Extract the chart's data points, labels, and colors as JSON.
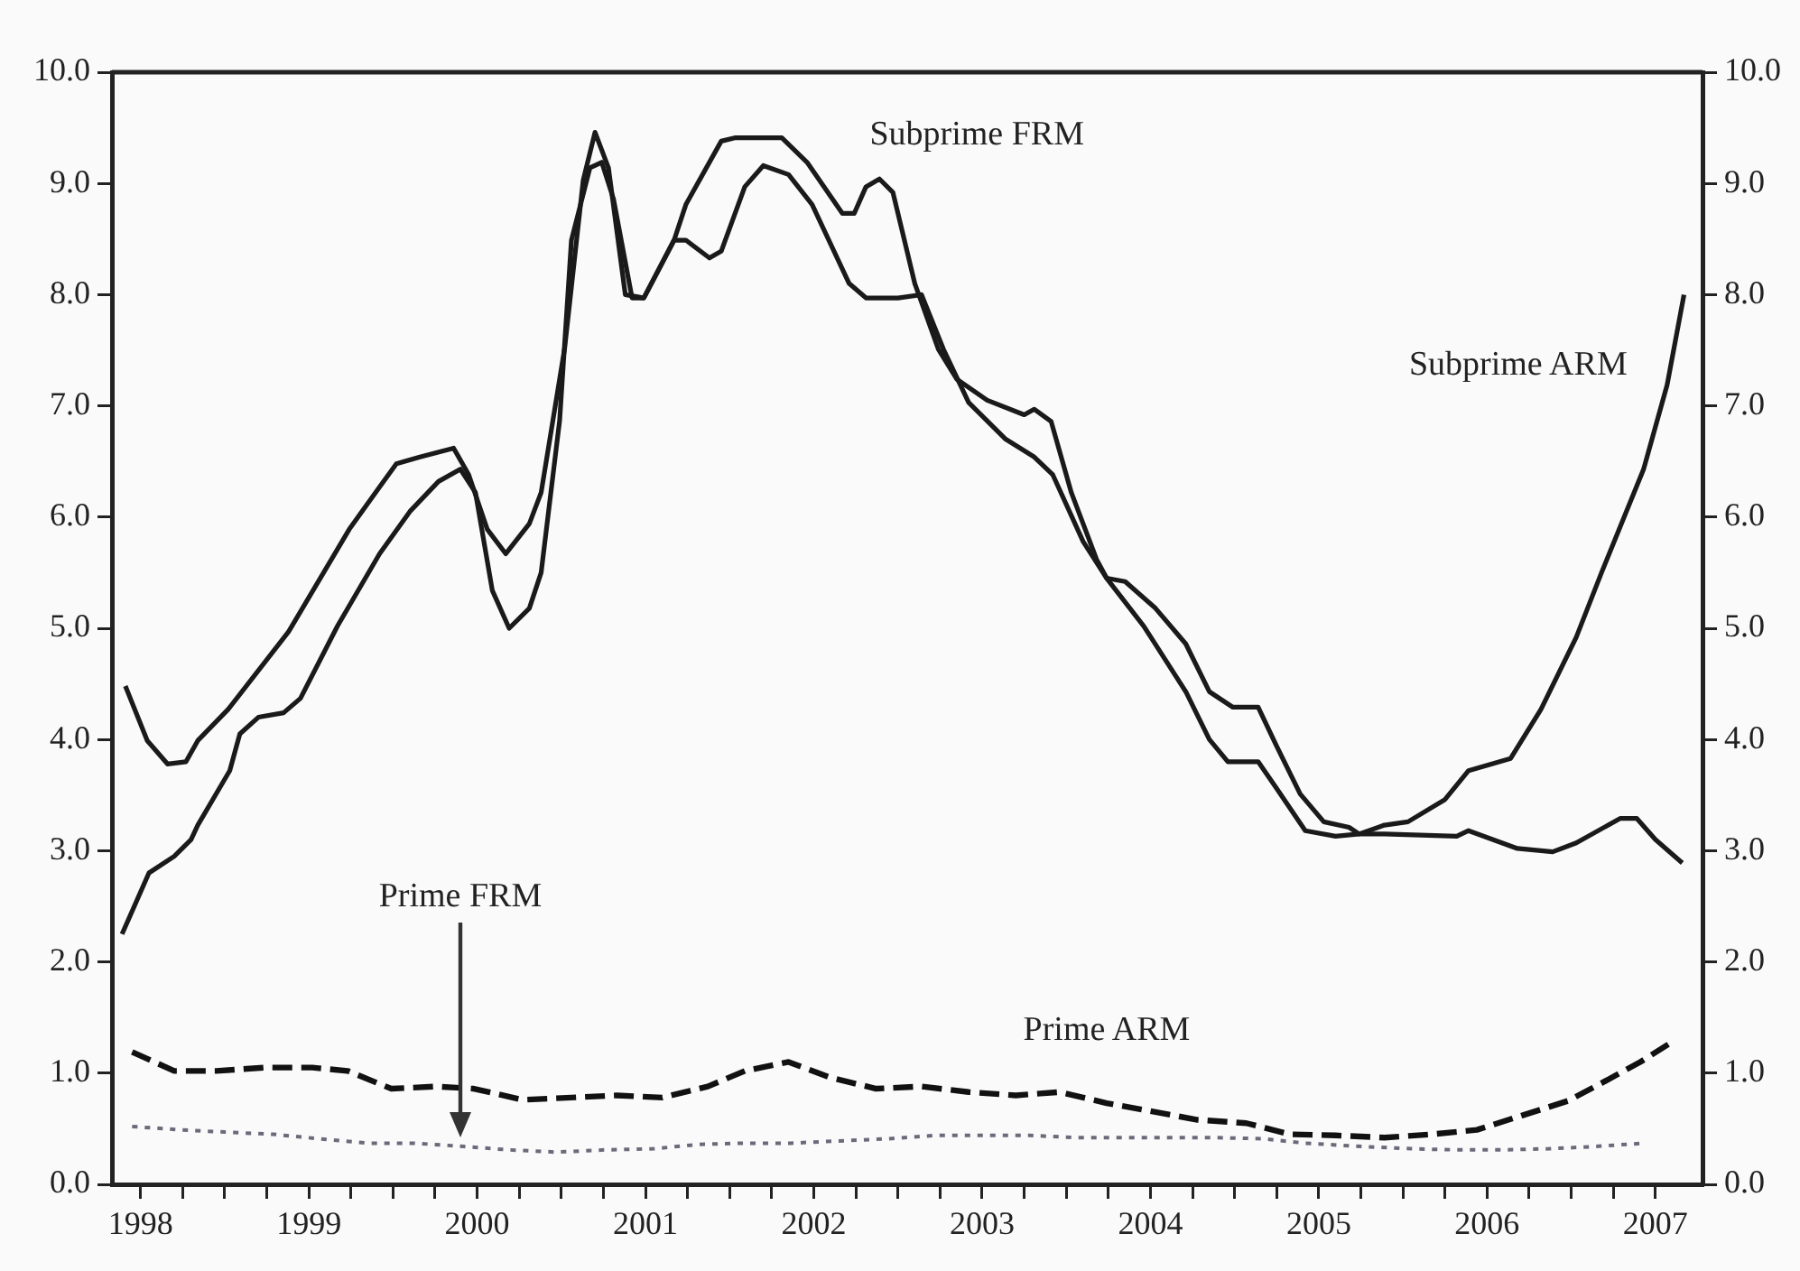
{
  "chart_data": {
    "type": "line",
    "xlim": [
      1997.83,
      2007.28
    ],
    "xticks": [
      1998,
      {
        "value": 1998.25,
        "label": null
      },
      {
        "value": 1998.5,
        "label": null
      },
      {
        "value": 1998.75,
        "label": null
      },
      1999,
      {
        "value": 1999.25,
        "label": null
      },
      {
        "value": 1999.5,
        "label": null
      },
      {
        "value": 1999.75,
        "label": null
      },
      2000,
      {
        "value": 2000.25,
        "label": null
      },
      {
        "value": 2000.5,
        "label": null
      },
      {
        "value": 2000.75,
        "label": null
      },
      2001,
      {
        "value": 2001.25,
        "label": null
      },
      {
        "value": 2001.5,
        "label": null
      },
      {
        "value": 2001.75,
        "label": null
      },
      2002,
      {
        "value": 2002.25,
        "label": null
      },
      {
        "value": 2002.5,
        "label": null
      },
      {
        "value": 2002.75,
        "label": null
      },
      2003,
      {
        "value": 2003.25,
        "label": null
      },
      {
        "value": 2003.5,
        "label": null
      },
      {
        "value": 2003.75,
        "label": null
      },
      2004,
      {
        "value": 2004.25,
        "label": null
      },
      {
        "value": 2004.5,
        "label": null
      },
      {
        "value": 2004.75,
        "label": null
      },
      2005,
      {
        "value": 2005.25,
        "label": null
      },
      {
        "value": 2005.5,
        "label": null
      },
      {
        "value": 2005.75,
        "label": null
      },
      2006,
      {
        "value": 2006.25,
        "label": null
      },
      {
        "value": 2006.5,
        "label": null
      },
      {
        "value": 2006.75,
        "label": null
      },
      2007
    ],
    "ylim": [
      0,
      10
    ],
    "yticks": [
      {
        "value": 0,
        "label": "0.0"
      },
      {
        "value": 1,
        "label": "1.0"
      },
      {
        "value": 2,
        "label": "2.0"
      },
      {
        "value": 3,
        "label": "3.0"
      },
      {
        "value": 4,
        "label": "4.0"
      },
      {
        "value": 5,
        "label": "5.0"
      },
      {
        "value": 6,
        "label": "6.0"
      },
      {
        "value": 7,
        "label": "7.0"
      },
      {
        "value": 8,
        "label": "8.0"
      },
      {
        "value": 9,
        "label": "9.0"
      },
      {
        "value": 10,
        "label": "10.0"
      }
    ],
    "y2lim": [
      0,
      10
    ],
    "y2ticks": [
      {
        "value": 0,
        "label": "0.0"
      },
      {
        "value": 1,
        "label": "1.0"
      },
      {
        "value": 2,
        "label": "2.0"
      },
      {
        "value": 3,
        "label": "3.0"
      },
      {
        "value": 4,
        "label": "4.0"
      },
      {
        "value": 5,
        "label": "5.0"
      },
      {
        "value": 6,
        "label": "6.0"
      },
      {
        "value": 7,
        "label": "7.0"
      },
      {
        "value": 8,
        "label": "8.0"
      },
      {
        "value": 9,
        "label": "9.0"
      },
      {
        "value": 10,
        "label": "10.0"
      }
    ],
    "series": [
      {
        "color": "#1a1a1a",
        "line_style": "solid",
        "x": [
          1997.91,
          1998.04,
          1998.16,
          1998.27,
          1998.34,
          1998.52,
          1998.88,
          1999.24,
          1999.42,
          1999.52,
          1999.66,
          1999.86,
          1999.95,
          2000.06,
          2000.17,
          2000.31,
          2000.38,
          2000.45,
          2000.52,
          2000.63,
          2000.7,
          2000.78,
          2000.88,
          2000.99,
          2001.17,
          2001.24,
          2001.45,
          2001.53,
          2001.81,
          2001.96,
          2002.17,
          2002.24,
          2002.31,
          2002.39,
          2002.47,
          2002.6,
          2002.74,
          2002.85,
          2003.03,
          2003.25,
          2003.31,
          2003.41,
          2003.53,
          2003.68,
          2003.74,
          2003.85,
          2004.03,
          2004.21,
          2004.35,
          2004.49,
          2004.64,
          2004.75,
          2004.89,
          2005.03,
          2005.18,
          2005.24,
          2005.39,
          2005.82,
          2005.89,
          2006.18,
          2006.39,
          2006.53,
          2006.79,
          2006.89,
          2007.0,
          2007.16
        ],
        "values": [
          4.48,
          3.99,
          3.78,
          3.8,
          3.99,
          4.27,
          4.97,
          5.89,
          6.27,
          6.48,
          6.54,
          6.62,
          6.38,
          5.89,
          5.67,
          5.94,
          6.22,
          6.87,
          7.52,
          9.03,
          9.46,
          9.14,
          8.0,
          7.97,
          8.49,
          8.81,
          9.38,
          9.41,
          9.41,
          9.19,
          8.73,
          8.73,
          8.97,
          9.04,
          8.92,
          8.1,
          7.51,
          7.24,
          7.05,
          6.92,
          6.97,
          6.86,
          6.22,
          5.62,
          5.45,
          5.42,
          5.18,
          4.86,
          4.43,
          4.29,
          4.29,
          3.94,
          3.51,
          3.26,
          3.21,
          3.15,
          3.15,
          3.13,
          3.18,
          3.02,
          2.99,
          3.07,
          3.29,
          3.29,
          3.1,
          2.89
        ]
      },
      {
        "color": "#1a1a1a",
        "line_style": "solid",
        "x": [
          1997.89,
          1998.05,
          1998.2,
          1998.3,
          1998.34,
          1998.53,
          1998.59,
          1998.7,
          1998.85,
          1998.95,
          1999.17,
          1999.42,
          1999.6,
          1999.77,
          1999.9,
          1999.99,
          2000.09,
          2000.19,
          2000.31,
          2000.38,
          2000.49,
          2000.56,
          2000.67,
          2000.74,
          2000.81,
          2000.92,
          2000.99,
          2001.17,
          2001.24,
          2001.38,
          2001.45,
          2001.59,
          2001.7,
          2001.85,
          2001.99,
          2002.21,
          2002.31,
          2002.5,
          2002.64,
          2002.77,
          2002.92,
          2003.14,
          2003.31,
          2003.42,
          2003.6,
          2003.74,
          2003.96,
          2004.21,
          2004.35,
          2004.46,
          2004.64,
          2004.75,
          2004.92,
          2005.1,
          2005.24,
          2005.39,
          2005.53,
          2005.75,
          2005.89,
          2006.14,
          2006.32,
          2006.53,
          2006.68,
          2006.93,
          2007.07,
          2007.17
        ],
        "values": [
          2.25,
          2.8,
          2.95,
          3.1,
          3.23,
          3.72,
          4.05,
          4.2,
          4.24,
          4.37,
          5.02,
          5.67,
          6.05,
          6.32,
          6.43,
          6.22,
          5.34,
          5.0,
          5.18,
          5.5,
          6.87,
          8.49,
          9.14,
          9.19,
          8.86,
          7.97,
          7.97,
          8.49,
          8.49,
          8.33,
          8.39,
          8.97,
          9.16,
          9.08,
          8.81,
          8.1,
          7.97,
          7.97,
          8.0,
          7.51,
          7.03,
          6.7,
          6.54,
          6.38,
          5.78,
          5.45,
          5.02,
          4.43,
          4.0,
          3.8,
          3.8,
          3.56,
          3.18,
          3.13,
          3.15,
          3.23,
          3.26,
          3.46,
          3.72,
          3.83,
          4.27,
          4.92,
          5.5,
          6.43,
          7.19,
          8.0
        ]
      },
      {
        "color": "#111111",
        "line_style": "dashed",
        "x": [
          1997.95,
          1998.2,
          1998.45,
          1998.74,
          1999.02,
          1999.23,
          1999.49,
          1999.76,
          1999.98,
          2000.27,
          2000.56,
          2000.83,
          2001.1,
          2001.37,
          2001.59,
          2001.85,
          2002.1,
          2002.37,
          2002.64,
          2002.92,
          2003.2,
          2003.46,
          2003.74,
          2004.03,
          2004.28,
          2004.57,
          2004.83,
          2005.1,
          2005.39,
          2005.67,
          2005.94,
          2006.21,
          2006.48,
          2006.68,
          2006.91,
          2007.12
        ],
        "values": [
          1.19,
          1.02,
          1.02,
          1.05,
          1.05,
          1.02,
          0.86,
          0.88,
          0.86,
          0.76,
          0.78,
          0.8,
          0.78,
          0.88,
          1.02,
          1.1,
          0.96,
          0.86,
          0.88,
          0.83,
          0.8,
          0.83,
          0.73,
          0.65,
          0.58,
          0.55,
          0.45,
          0.44,
          0.42,
          0.45,
          0.49,
          0.62,
          0.75,
          0.91,
          1.1,
          1.3
        ]
      },
      {
        "color": "#6a6a7a",
        "line_style": "dotted",
        "x": [
          1997.95,
          1998.24,
          1998.5,
          1998.79,
          1999.06,
          1999.36,
          1999.63,
          1999.92,
          2000.19,
          2000.47,
          2000.76,
          2001.05,
          2001.32,
          2001.59,
          2001.86,
          2002.15,
          2002.44,
          2002.72,
          2002.99,
          2003.28,
          2003.57,
          2003.85,
          2004.12,
          2004.38,
          2004.67,
          2004.92,
          2005.26,
          2005.55,
          2005.82,
          2006.09,
          2006.37,
          2006.64,
          2006.93
        ],
        "values": [
          0.52,
          0.49,
          0.47,
          0.45,
          0.41,
          0.37,
          0.37,
          0.34,
          0.31,
          0.29,
          0.31,
          0.32,
          0.36,
          0.37,
          0.37,
          0.39,
          0.41,
          0.44,
          0.44,
          0.44,
          0.42,
          0.42,
          0.42,
          0.42,
          0.41,
          0.37,
          0.34,
          0.32,
          0.31,
          0.31,
          0.32,
          0.34,
          0.37
        ]
      }
    ],
    "annotations": [
      {
        "text": "Subprime FRM",
        "x": 2002.39,
        "y": 9.04
      },
      {
        "text": "Subprime ARM",
        "x": 2007.0,
        "y": 6.84
      },
      {
        "text": "Prime ARM",
        "x": 2003.74,
        "y": 0.73
      },
      "Prime FRM"
    ]
  }
}
